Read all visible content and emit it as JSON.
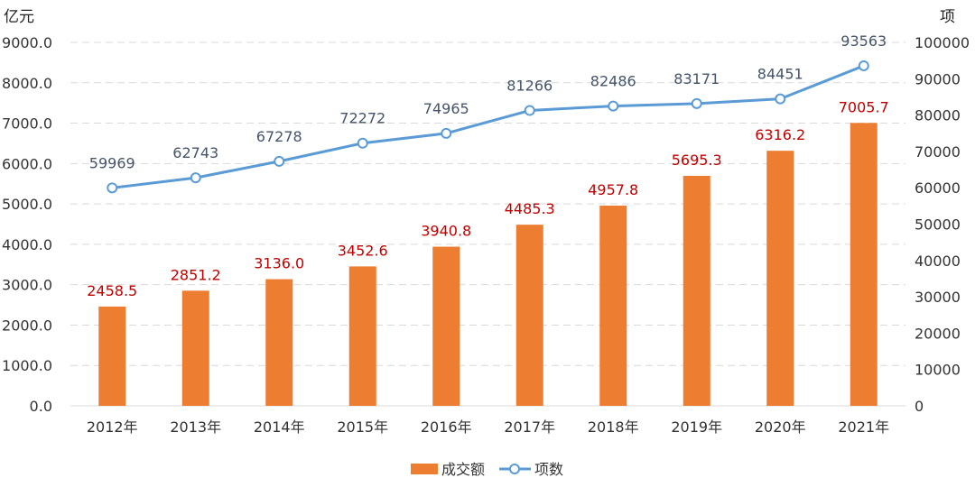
{
  "chart_data": {
    "type": "bar+line",
    "categories": [
      "2012年",
      "2013年",
      "2014年",
      "2015年",
      "2016年",
      "2017年",
      "2018年",
      "2019年",
      "2020年",
      "2021年"
    ],
    "series": [
      {
        "name": "成交额",
        "type": "bar",
        "axis": "left",
        "values": [
          2458.5,
          2851.2,
          3136.0,
          3452.6,
          3940.8,
          4485.3,
          4957.8,
          5695.3,
          6316.2,
          7005.7
        ],
        "labels": [
          "2458.5",
          "2851.2",
          "3136.0",
          "3452.6",
          "3940.8",
          "4485.3",
          "4957.8",
          "5695.3",
          "6316.2",
          "7005.7"
        ],
        "color": "#ed7d31",
        "label_color": "#c00000"
      },
      {
        "name": "项数",
        "type": "line",
        "axis": "right",
        "values": [
          59969,
          62743,
          67278,
          72272,
          74965,
          81266,
          82486,
          83171,
          84451,
          93563
        ],
        "labels": [
          "59969",
          "62743",
          "67278",
          "72272",
          "74965",
          "81266",
          "82486",
          "83171",
          "84451",
          "93563"
        ],
        "color": "#5b9bd5",
        "label_color": "#44546a"
      }
    ],
    "left_axis": {
      "unit": "亿元",
      "min": 0,
      "max": 9000,
      "ticks": [
        "0.0",
        "1000.0",
        "2000.0",
        "3000.0",
        "4000.0",
        "5000.0",
        "6000.0",
        "7000.0",
        "8000.0",
        "9000.0"
      ]
    },
    "right_axis": {
      "unit": "项",
      "min": 0,
      "max": 100000,
      "ticks": [
        "0",
        "10000",
        "20000",
        "30000",
        "40000",
        "50000",
        "60000",
        "70000",
        "80000",
        "90000",
        "100000"
      ]
    },
    "grid": "horizontal dashed",
    "legend_position": "bottom-center"
  }
}
